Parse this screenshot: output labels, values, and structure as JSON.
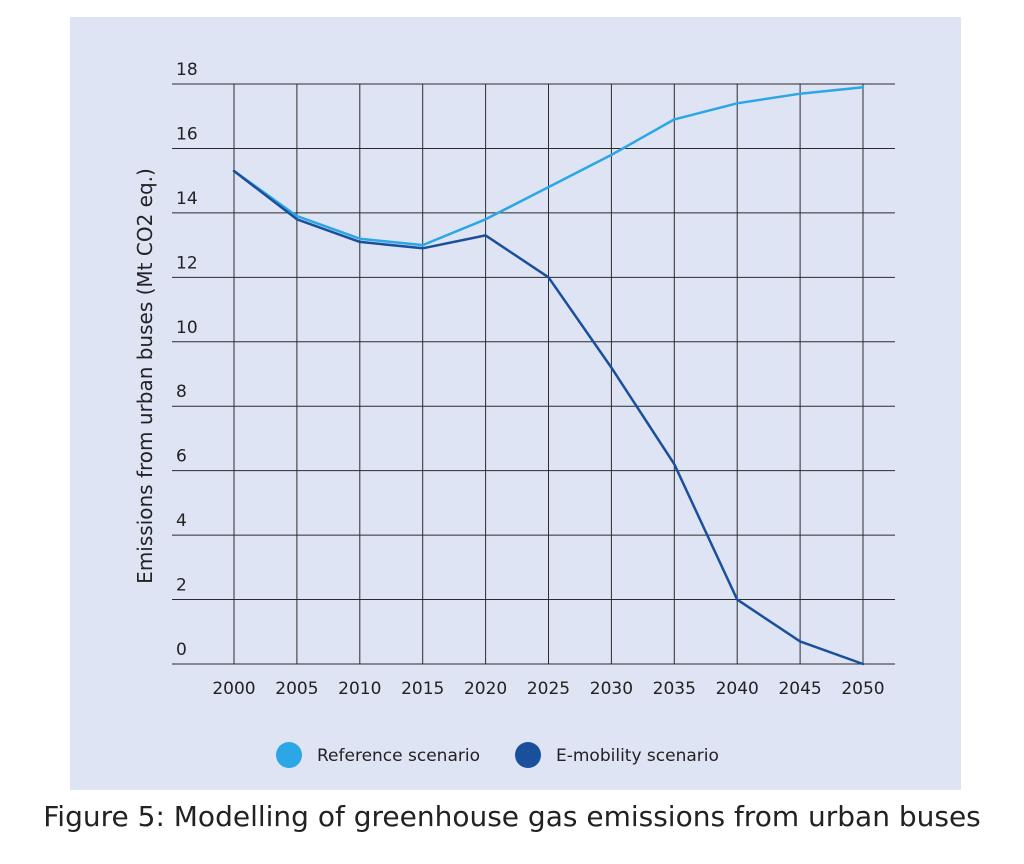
{
  "caption": "Figure 5: Modelling of greenhouse gas emissions from urban buses",
  "colors": {
    "panel_background": "#dfe4f5",
    "grid": "#2b2b2b",
    "reference": "#2aa7e4",
    "emobility": "#1a4f9c",
    "text": "#222222"
  },
  "chart_data": {
    "type": "line",
    "title": "",
    "xlabel": "",
    "ylabel": "Emissions from urban buses (Mt CO2 eq.)",
    "x": [
      2000,
      2005,
      2010,
      2015,
      2020,
      2025,
      2030,
      2035,
      2040,
      2045,
      2050
    ],
    "x_tick_labels": [
      "2000",
      "2005",
      "2010",
      "2015",
      "2020",
      "2025",
      "2030",
      "2035",
      "2040",
      "2045",
      "2050"
    ],
    "y_ticks": [
      0,
      2,
      4,
      6,
      8,
      10,
      12,
      14,
      16,
      18
    ],
    "y_tick_labels": [
      "0",
      "2",
      "4",
      "6",
      "8",
      "10",
      "12",
      "14",
      "16",
      "18"
    ],
    "xlim": [
      2000,
      2050
    ],
    "ylim": [
      0,
      18
    ],
    "grid": true,
    "legend_position": "bottom",
    "series": [
      {
        "name": "Reference scenario",
        "color": "#2aa7e4",
        "values": [
          15.3,
          13.9,
          13.2,
          13.0,
          13.8,
          14.8,
          15.8,
          16.9,
          17.4,
          17.7,
          17.9
        ]
      },
      {
        "name": "E-mobility scenario",
        "color": "#1a4f9c",
        "values": [
          15.3,
          13.8,
          13.1,
          12.9,
          13.3,
          12.0,
          9.2,
          6.2,
          2.0,
          0.7,
          0.0
        ]
      }
    ]
  }
}
